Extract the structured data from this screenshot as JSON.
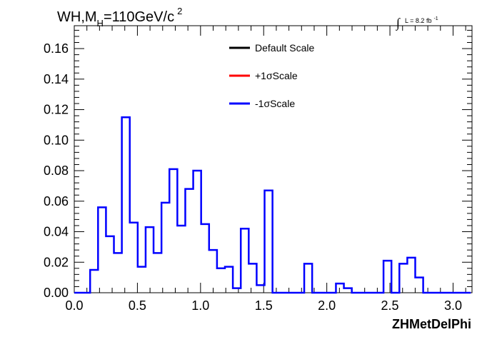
{
  "chart_data": {
    "type": "histogram-step",
    "title_parts": {
      "prefix": "WH,M",
      "subscript": "H",
      "middle": "=110GeV/c",
      "superscript": "2"
    },
    "lumi_label": {
      "integral": "∫",
      "text": "L = 8.2 fb",
      "exponent": "-1"
    },
    "xlabel": "ZHMetDelPhi",
    "ylabel": "",
    "xlim": [
      0.0,
      3.15
    ],
    "ylim": [
      0.0,
      0.175
    ],
    "x_ticks": [
      "0.0",
      "0.5",
      "1.0",
      "1.5",
      "2.0",
      "2.5",
      "3.0"
    ],
    "y_ticks": [
      "0.00",
      "0.02",
      "0.04",
      "0.06",
      "0.08",
      "0.10",
      "0.12",
      "0.14",
      "0.16"
    ],
    "bin_width": 0.0628,
    "legend": {
      "position": "top-center",
      "entries": [
        {
          "label": "Default Scale",
          "color": "#000000"
        },
        {
          "label": "+1σScale",
          "color": "#ff0000"
        },
        {
          "label": "-1σScale",
          "color": "#0000ff"
        }
      ]
    },
    "series": [
      {
        "name": "-1σScale",
        "color": "#0000ff",
        "bin_edges_start": 0.0,
        "values": [
          0,
          0,
          0.015,
          0.056,
          0.037,
          0.026,
          0.115,
          0.046,
          0.017,
          0.043,
          0.026,
          0.059,
          0.081,
          0.044,
          0.068,
          0.08,
          0.045,
          0.028,
          0.016,
          0.017,
          0.003,
          0.042,
          0.019,
          0.005,
          0.067,
          0.0,
          0.0,
          0.0,
          0.0,
          0.019,
          0.0,
          0.0,
          0.0,
          0.006,
          0.003,
          0.0,
          0.0,
          0.0,
          0.0,
          0.021,
          0.0,
          0.019,
          0.023,
          0.01,
          0.0,
          0.0,
          0.0,
          0.0,
          0.0,
          0.0
        ]
      }
    ]
  }
}
